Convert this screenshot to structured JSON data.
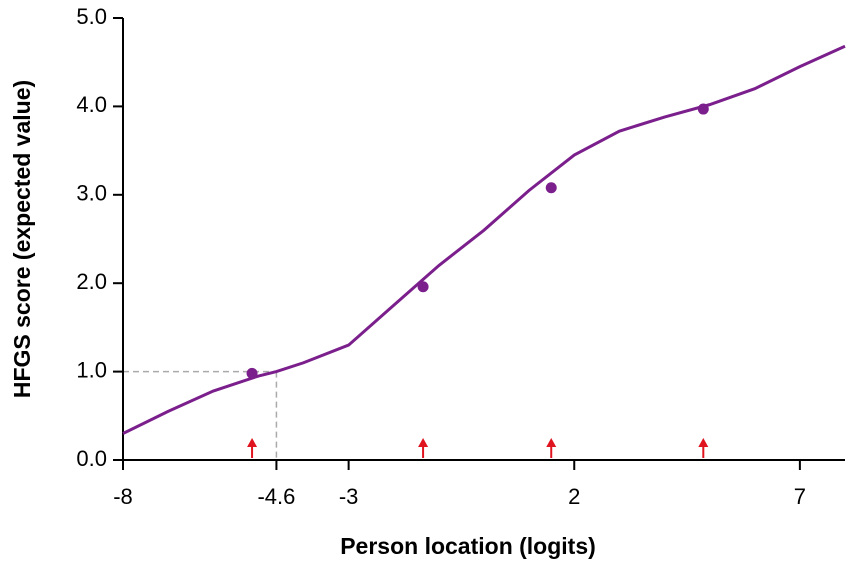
{
  "chart_data": {
    "type": "line",
    "xlabel": "Person location (logits)",
    "ylabel": "HFGS score (expected value)",
    "xlim": [
      -8,
      8
    ],
    "ylim": [
      0,
      5
    ],
    "xticks": [
      -8,
      -4.6,
      -3,
      2,
      7
    ],
    "yticks": [
      {
        "value": 0,
        "label": "0.0"
      },
      {
        "value": 1,
        "label": "1.0"
      },
      {
        "value": 2,
        "label": "2.0"
      },
      {
        "value": 3,
        "label": "3.0"
      },
      {
        "value": 4,
        "label": "4.0"
      },
      {
        "value": 5,
        "label": "5.0"
      }
    ],
    "curve": {
      "color": "#7b1f8c",
      "x": [
        -8,
        -7,
        -6,
        -5,
        -4.6,
        -4,
        -3,
        -2,
        -1,
        0,
        1,
        2,
        3,
        4,
        5,
        6,
        7,
        8
      ],
      "values": [
        0.3,
        0.55,
        0.78,
        0.95,
        1.0,
        1.1,
        1.3,
        1.75,
        2.2,
        2.6,
        3.05,
        3.45,
        3.72,
        3.88,
        4.02,
        4.2,
        4.45,
        4.68
      ]
    },
    "points": {
      "color": "#7b1f8c",
      "x": [
        -5.14,
        -1.35,
        1.49,
        4.86
      ],
      "values": [
        0.98,
        1.96,
        3.08,
        3.97
      ]
    },
    "thresholds": {
      "color": "#e0141e",
      "x": [
        -5.14,
        -1.35,
        1.49,
        4.86
      ]
    },
    "reference": {
      "x": -4.6,
      "y": 1.0,
      "color": "#aaaaaa"
    }
  }
}
